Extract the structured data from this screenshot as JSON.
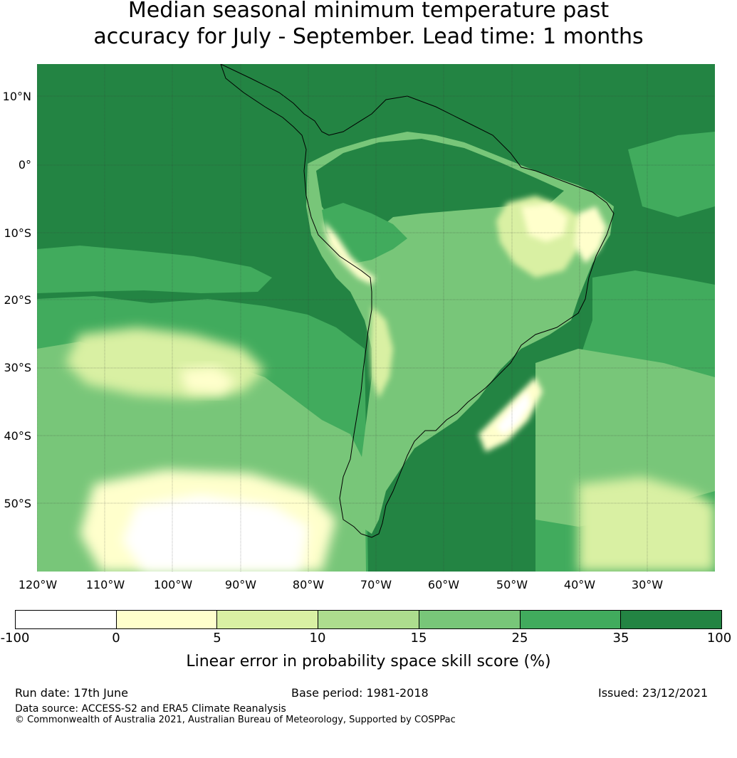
{
  "title": {
    "line1": "Median seasonal minimum temperature past",
    "line2": "accuracy for July - September. Lead time: 1 months"
  },
  "map": {
    "lat_labels": [
      "10°N",
      "0°",
      "10°S",
      "20°S",
      "30°S",
      "40°S",
      "50°S"
    ],
    "lon_labels": [
      "120°W",
      "110°W",
      "100°W",
      "90°W",
      "80°W",
      "70°W",
      "60°W",
      "50°W",
      "40°W",
      "30°W"
    ],
    "region": "South America",
    "ocean_dominant_category": "35 to 100",
    "land_dominant_category": "15 to 25"
  },
  "colorbar": {
    "ticks": [
      "-100",
      "0",
      "5",
      "10",
      "15",
      "25",
      "35",
      "100"
    ],
    "colors": [
      "#ffffff",
      "#ffffcc",
      "#d9f0a3",
      "#addd8e",
      "#78c679",
      "#41ab5d",
      "#238443"
    ],
    "label": "Linear error in probability space skill score (%)"
  },
  "footer": {
    "run_date": "Run date: 17th June",
    "base_period": "Base period: 1981-2018",
    "issued": "Issued: 23/12/2021",
    "data_source": "Data source: ACCESS-S2 and ERA5 Climate Reanalysis",
    "copyright": "© Commonwealth of Australia 2021, Australian Bureau of Meteorology, Supported by COSPPac"
  }
}
